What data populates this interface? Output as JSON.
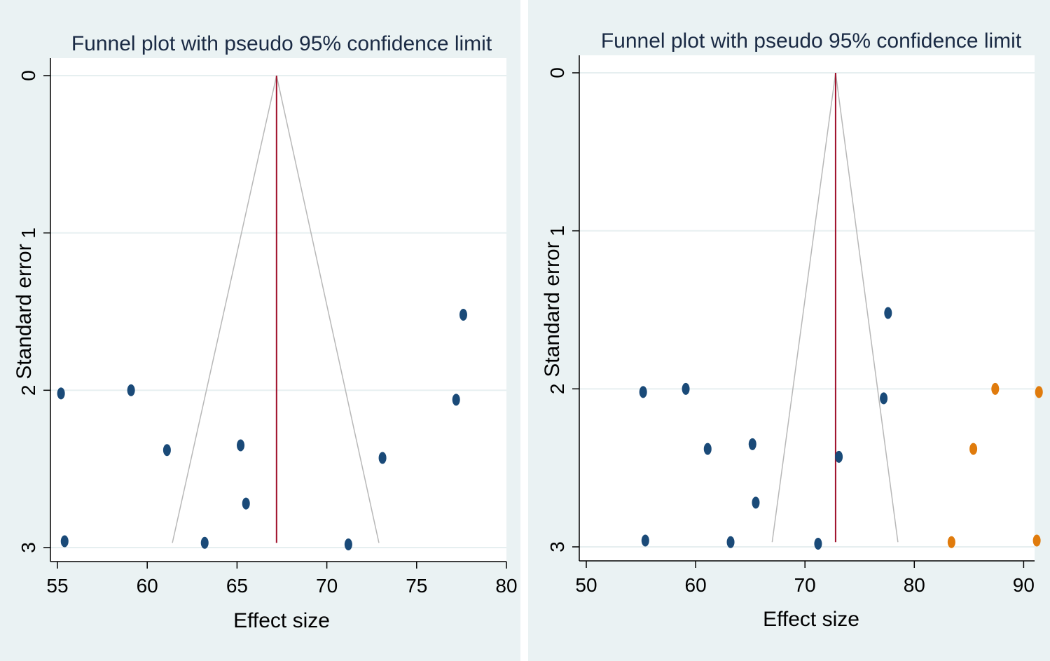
{
  "chart_data": [
    {
      "type": "scatter",
      "title": "Funnel plot with pseudo 95% confidence limit",
      "xlabel": "Effect size",
      "ylabel": "Standard error",
      "xlim": [
        55,
        80
      ],
      "ylim": [
        3,
        0
      ],
      "y_axis_reversed": true,
      "xticks": [
        "55",
        "60",
        "65",
        "70",
        "75",
        "80"
      ],
      "yticks": [
        "0",
        "1",
        "2",
        "3"
      ],
      "grid": "horizontal",
      "pooled_effect": 67.2,
      "funnel": {
        "apex": [
          67.2,
          0
        ],
        "base_left": [
          61.4,
          2.97
        ],
        "base_right": [
          72.9,
          2.97
        ]
      },
      "series": [
        {
          "color": "#1a4a78",
          "points": [
            {
              "x": 55.2,
              "y": 2.02
            },
            {
              "x": 55.4,
              "y": 2.96
            },
            {
              "x": 59.1,
              "y": 2.0
            },
            {
              "x": 61.1,
              "y": 2.38
            },
            {
              "x": 63.2,
              "y": 2.97
            },
            {
              "x": 65.2,
              "y": 2.35
            },
            {
              "x": 65.5,
              "y": 2.72
            },
            {
              "x": 71.2,
              "y": 2.98
            },
            {
              "x": 73.1,
              "y": 2.43
            },
            {
              "x": 77.2,
              "y": 2.06
            },
            {
              "x": 77.6,
              "y": 1.52
            }
          ]
        }
      ]
    },
    {
      "type": "scatter",
      "title": "Funnel plot with pseudo 95% confidence limit",
      "xlabel": "Effect size",
      "ylabel": "Standard error",
      "xlim": [
        50,
        91
      ],
      "ylim": [
        3,
        0
      ],
      "y_axis_reversed": true,
      "xticks": [
        "50",
        "60",
        "70",
        "80",
        "90"
      ],
      "yticks": [
        "0",
        "1",
        "2",
        "3"
      ],
      "grid": "horizontal",
      "pooled_effect": 72.8,
      "funnel": {
        "apex": [
          72.8,
          0
        ],
        "base_left": [
          67.0,
          2.97
        ],
        "base_right": [
          78.5,
          2.97
        ]
      },
      "series": [
        {
          "color": "#1a4a78",
          "points": [
            {
              "x": 55.2,
              "y": 2.02
            },
            {
              "x": 55.4,
              "y": 2.96
            },
            {
              "x": 59.1,
              "y": 2.0
            },
            {
              "x": 61.1,
              "y": 2.38
            },
            {
              "x": 63.2,
              "y": 2.97
            },
            {
              "x": 65.2,
              "y": 2.35
            },
            {
              "x": 65.5,
              "y": 2.72
            },
            {
              "x": 71.2,
              "y": 2.98
            },
            {
              "x": 73.1,
              "y": 2.43
            },
            {
              "x": 77.2,
              "y": 2.06
            },
            {
              "x": 77.6,
              "y": 1.52
            }
          ]
        },
        {
          "color": "#e07b0c",
          "points": [
            {
              "x": 83.4,
              "y": 2.97
            },
            {
              "x": 85.4,
              "y": 2.38
            },
            {
              "x": 87.4,
              "y": 2.0
            },
            {
              "x": 91.2,
              "y": 2.96
            },
            {
              "x": 91.4,
              "y": 2.02
            }
          ]
        }
      ]
    }
  ]
}
